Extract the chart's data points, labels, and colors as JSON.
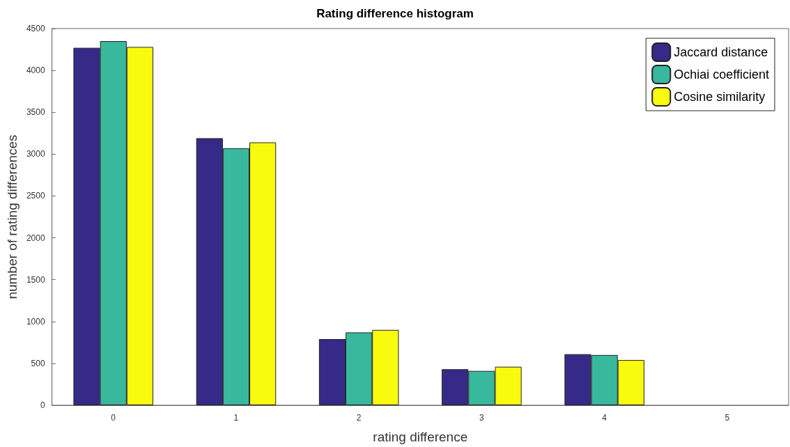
{
  "chart_data": {
    "type": "bar",
    "title": "Rating difference histogram",
    "xlabel": "rating difference",
    "ylabel": "number of rating differences",
    "categories": [
      "0",
      "1",
      "2",
      "3",
      "4",
      "5"
    ],
    "series": [
      {
        "name": "Jaccard distance",
        "color": "#352a87",
        "values": [
          4270,
          3190,
          790,
          430,
          610,
          0
        ]
      },
      {
        "name": "Ochiai coefficient",
        "color": "#38b99e",
        "values": [
          4350,
          3070,
          870,
          410,
          600,
          0
        ]
      },
      {
        "name": "Cosine similarity",
        "color": "#f9fb0e",
        "values": [
          4280,
          3140,
          900,
          460,
          540,
          0
        ]
      }
    ],
    "ylim": [
      0,
      4500
    ],
    "yticks": [
      0,
      500,
      1000,
      1500,
      2000,
      2500,
      3000,
      3500,
      4000,
      4500
    ],
    "grid": false,
    "legend": "top right"
  }
}
